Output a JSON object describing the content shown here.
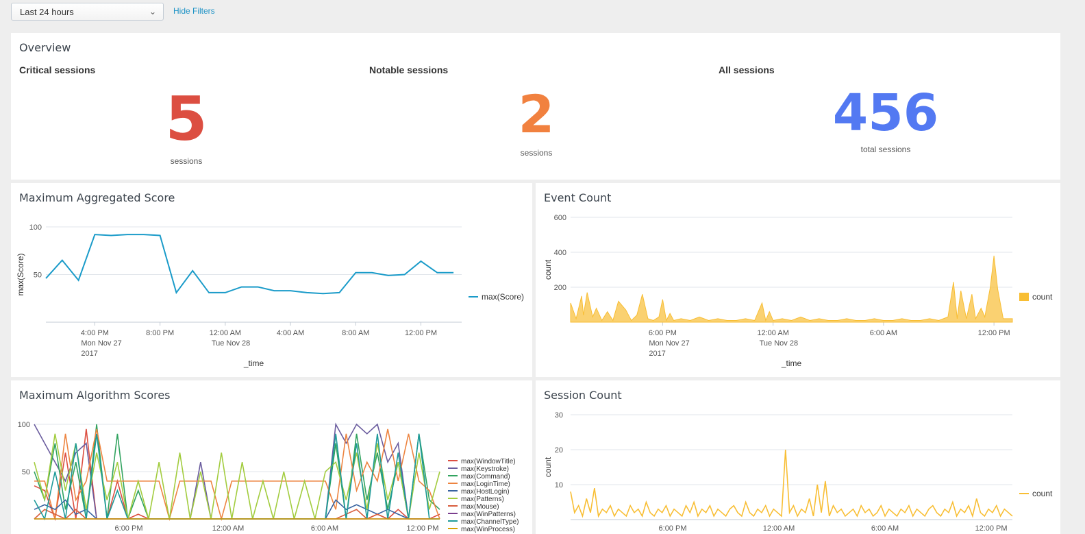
{
  "filters": {
    "time_range": "Last 24 hours",
    "hide_filters_label": "Hide Filters"
  },
  "overview": {
    "title": "Overview",
    "critical": {
      "label": "Critical sessions",
      "value": "5",
      "unit": "sessions",
      "color": "#dc4e41"
    },
    "notable": {
      "label": "Notable sessions",
      "value": "2",
      "unit": "sessions",
      "color": "#f1813f"
    },
    "all": {
      "label": "All sessions",
      "value": "456",
      "unit": "total sessions",
      "color": "#5379f2"
    }
  },
  "panels": {
    "score_title": "Maximum Aggregated Score",
    "event_title": "Event Count",
    "algo_title": "Maximum Algorithm Scores",
    "session_title": "Session Count"
  },
  "chart_data": [
    {
      "type": "line",
      "title": "Maximum Aggregated Score",
      "xlabel": "_time",
      "ylabel": "max(Score)",
      "ylim": [
        0,
        100
      ],
      "yticks": [
        50,
        100
      ],
      "x_tick_labels": [
        [
          "4:00 PM",
          "Mon Nov 27",
          "2017"
        ],
        [
          "8:00 PM"
        ],
        [
          "12:00 AM",
          "Tue Nov 28"
        ],
        [
          "4:00 AM"
        ],
        [
          "8:00 AM"
        ],
        [
          "12:00 PM"
        ]
      ],
      "x_range_hours": [
        13,
        38.5
      ],
      "x_ticks_hours": [
        16,
        20,
        24,
        28,
        32,
        36
      ],
      "legend_position": "right",
      "series": [
        {
          "name": "max(Score)",
          "color": "#1a9bc9",
          "x_hours": [
            13,
            14,
            15,
            16,
            17,
            18,
            19,
            20,
            21,
            22,
            23,
            24,
            25,
            26,
            27,
            28,
            29,
            30,
            31,
            32,
            33,
            34,
            35,
            36,
            37,
            38
          ],
          "values": [
            46,
            65,
            44,
            92,
            91,
            92,
            92,
            91,
            31,
            54,
            31,
            31,
            37,
            37,
            33,
            33,
            31,
            30,
            31,
            52,
            52,
            49,
            50,
            64,
            52,
            52
          ]
        }
      ]
    },
    {
      "type": "area",
      "title": "Event Count",
      "xlabel": "_time",
      "ylabel": "count",
      "ylim": [
        0,
        600
      ],
      "yticks": [
        200,
        400,
        600
      ],
      "x_tick_labels": [
        [
          "6:00 PM",
          "Mon Nov 27",
          "2017"
        ],
        [
          "12:00 AM",
          "Tue Nov 28"
        ],
        [
          "6:00 AM"
        ],
        [
          "12:00 PM"
        ]
      ],
      "x_ticks_hours": [
        18,
        24,
        30,
        36
      ],
      "x_range_hours": [
        13,
        37
      ],
      "legend_position": "right",
      "series": [
        {
          "name": "count",
          "color": "#f8be34",
          "x_hours": [
            13,
            13.3,
            13.6,
            13.7,
            13.9,
            14.2,
            14.4,
            14.7,
            15,
            15.3,
            15.6,
            16,
            16.3,
            16.6,
            16.9,
            17.2,
            17.5,
            17.8,
            18,
            18.2,
            18.4,
            18.6,
            19,
            19.5,
            20,
            20.5,
            21,
            21.5,
            22,
            22.5,
            23,
            23.4,
            23.6,
            23.8,
            24,
            24.5,
            25,
            25.5,
            26,
            26.5,
            27,
            27.5,
            28,
            28.5,
            29,
            29.5,
            30,
            30.5,
            31,
            31.5,
            32,
            32.5,
            33,
            33.5,
            33.8,
            34,
            34.2,
            34.5,
            34.8,
            35,
            35.3,
            35.5,
            35.8,
            36,
            36.2,
            36.5,
            37
          ],
          "values": [
            110,
            20,
            150,
            40,
            170,
            30,
            80,
            10,
            60,
            10,
            120,
            70,
            10,
            40,
            160,
            20,
            10,
            30,
            130,
            10,
            50,
            10,
            20,
            10,
            30,
            10,
            20,
            10,
            10,
            20,
            10,
            110,
            10,
            60,
            10,
            20,
            10,
            30,
            10,
            20,
            10,
            10,
            20,
            10,
            10,
            20,
            10,
            10,
            20,
            10,
            10,
            20,
            10,
            30,
            230,
            20,
            180,
            20,
            160,
            20,
            80,
            30,
            200,
            380,
            190,
            20,
            20
          ]
        }
      ]
    },
    {
      "type": "line",
      "title": "Maximum Algorithm Scores",
      "ylim": [
        0,
        100
      ],
      "yticks": [
        50,
        100
      ],
      "x_tick_labels": [
        "6:00 PM",
        "12:00 AM",
        "6:00 AM",
        "12:00 PM"
      ],
      "legend_position": "right",
      "series": [
        {
          "name": "max(WindowTitle)",
          "color": "#dc4e41",
          "values": [
            35,
            30,
            0,
            70,
            0,
            95,
            0,
            0,
            40,
            0,
            5,
            0,
            0,
            0,
            0,
            0,
            0,
            0,
            0,
            0,
            0,
            0,
            0,
            0,
            0,
            0,
            0,
            0,
            0,
            0,
            0,
            0,
            0,
            5,
            0,
            10,
            0,
            0,
            0,
            5
          ]
        },
        {
          "name": "max(Keystroke)",
          "color": "#6a5c9e",
          "values": [
            100,
            80,
            60,
            40,
            70,
            80,
            0,
            0,
            0,
            0,
            0,
            0,
            0,
            0,
            0,
            0,
            60,
            0,
            0,
            0,
            0,
            0,
            0,
            0,
            0,
            0,
            0,
            0,
            0,
            100,
            80,
            100,
            90,
            100,
            60,
            80,
            0,
            0,
            0,
            0
          ]
        },
        {
          "name": "max(Command)",
          "color": "#31a35f",
          "values": [
            50,
            20,
            80,
            10,
            60,
            0,
            100,
            0,
            90,
            0,
            30,
            0,
            0,
            0,
            0,
            0,
            0,
            0,
            0,
            0,
            0,
            0,
            0,
            0,
            0,
            0,
            0,
            0,
            0,
            80,
            0,
            90,
            20,
            70,
            10,
            60,
            0,
            90,
            20,
            10
          ]
        },
        {
          "name": "max(LoginTime)",
          "color": "#ed8440",
          "values": [
            40,
            40,
            0,
            90,
            20,
            40,
            95,
            40,
            40,
            40,
            40,
            40,
            40,
            0,
            40,
            40,
            40,
            40,
            0,
            40,
            40,
            40,
            40,
            40,
            40,
            40,
            40,
            40,
            40,
            10,
            90,
            30,
            60,
            40,
            95,
            40,
            90,
            40,
            30,
            0
          ]
        },
        {
          "name": "max(HostLogin)",
          "color": "#3863a0",
          "values": [
            10,
            15,
            10,
            20,
            5,
            10,
            0,
            0,
            0,
            0,
            0,
            0,
            0,
            0,
            0,
            0,
            0,
            0,
            0,
            0,
            0,
            0,
            0,
            0,
            0,
            0,
            0,
            0,
            0,
            20,
            10,
            15,
            10,
            5,
            10,
            5,
            0,
            0,
            0,
            0
          ]
        },
        {
          "name": "max(Patterns)",
          "color": "#a2cc3e",
          "values": [
            60,
            20,
            90,
            30,
            80,
            10,
            70,
            20,
            60,
            0,
            40,
            0,
            60,
            0,
            70,
            0,
            50,
            0,
            70,
            0,
            60,
            0,
            40,
            0,
            50,
            0,
            40,
            0,
            50,
            60,
            20,
            70,
            10,
            80,
            20,
            60,
            0,
            70,
            10,
            50
          ]
        },
        {
          "name": "max(Mouse)",
          "color": "#d85d3c",
          "values": [
            0,
            10,
            5,
            0,
            10,
            0,
            0,
            0,
            0,
            0,
            0,
            0,
            0,
            0,
            0,
            0,
            0,
            0,
            0,
            0,
            0,
            0,
            0,
            0,
            0,
            0,
            0,
            0,
            0,
            0,
            5,
            10,
            0,
            5,
            0,
            0,
            0,
            0,
            0,
            0
          ]
        },
        {
          "name": "max(WinPatterns)",
          "color": "#7b3e8e",
          "values": [
            0,
            0,
            0,
            0,
            0,
            0,
            0,
            0,
            0,
            0,
            0,
            0,
            0,
            0,
            0,
            0,
            0,
            0,
            0,
            0,
            0,
            0,
            0,
            0,
            0,
            0,
            0,
            0,
            0,
            0,
            0,
            0,
            0,
            0,
            0,
            0,
            0,
            0,
            0,
            0
          ]
        },
        {
          "name": "max(ChannelType)",
          "color": "#1e9a99",
          "values": [
            20,
            0,
            50,
            0,
            80,
            0,
            90,
            0,
            30,
            0,
            0,
            0,
            0,
            0,
            0,
            0,
            0,
            0,
            0,
            0,
            0,
            0,
            0,
            0,
            0,
            0,
            0,
            0,
            0,
            90,
            0,
            80,
            0,
            90,
            0,
            70,
            0,
            90,
            0,
            0
          ]
        },
        {
          "name": "max(WinProcess)",
          "color": "#d6a200",
          "values": [
            0,
            0,
            0,
            0,
            0,
            0,
            0,
            0,
            0,
            0,
            0,
            0,
            0,
            0,
            0,
            0,
            0,
            0,
            0,
            0,
            0,
            0,
            0,
            0,
            0,
            0,
            0,
            0,
            0,
            0,
            0,
            0,
            0,
            0,
            0,
            0,
            0,
            0,
            0,
            0
          ]
        }
      ]
    },
    {
      "type": "line",
      "title": "Session Count",
      "ylabel": "count",
      "ylim": [
        0,
        30
      ],
      "yticks": [
        10,
        20,
        30
      ],
      "x_tick_labels": [
        "6:00 PM",
        "12:00 AM",
        "6:00 AM",
        "12:00 PM"
      ],
      "legend_position": "right",
      "series": [
        {
          "name": "count",
          "color": "#f8be34",
          "values": [
            8,
            2,
            4,
            1,
            6,
            2,
            9,
            1,
            3,
            2,
            4,
            1,
            3,
            2,
            1,
            4,
            2,
            3,
            1,
            5,
            2,
            1,
            3,
            2,
            4,
            1,
            3,
            2,
            1,
            4,
            2,
            5,
            1,
            3,
            2,
            4,
            1,
            3,
            2,
            1,
            3,
            4,
            2,
            1,
            5,
            2,
            1,
            3,
            2,
            4,
            1,
            3,
            2,
            1,
            20,
            2,
            4,
            1,
            3,
            2,
            6,
            1,
            10,
            2,
            11,
            1,
            4,
            2,
            3,
            1,
            2,
            3,
            1,
            4,
            2,
            3,
            1,
            2,
            4,
            1,
            3,
            2,
            1,
            3,
            2,
            4,
            1,
            3,
            2,
            1,
            3,
            4,
            2,
            1,
            3,
            2,
            5,
            1,
            3,
            2,
            4,
            1,
            6,
            2,
            1,
            3,
            2,
            4,
            1,
            3,
            2,
            1
          ]
        }
      ]
    }
  ]
}
